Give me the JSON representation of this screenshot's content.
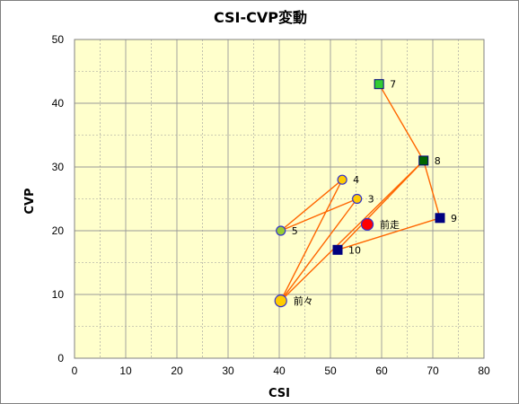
{
  "chart_data": {
    "type": "scatter",
    "title": "CSI-CVP変動",
    "xlabel": "CSI",
    "ylabel": "CVP",
    "xlim": [
      0,
      80
    ],
    "ylim": [
      0,
      50
    ],
    "xticks": [
      0,
      10,
      20,
      30,
      40,
      50,
      60,
      70,
      80
    ],
    "yticks": [
      0,
      10,
      20,
      30,
      40,
      50
    ],
    "grid": true,
    "colors": {
      "plot_bg": "#ffffcc",
      "grid": "#999999",
      "line": "#ff6600",
      "circle_fill": "#ffcc00",
      "circle_edge": "#3333cc",
      "square_fill": "#000080",
      "latest_fill": "#ff0000",
      "session5_fill": "#99cc33",
      "session7_fill": "#33cc33",
      "session8_fill": "#006600"
    },
    "points": [
      {
        "label": "前々",
        "x": 40.3,
        "y": 9,
        "marker": "circle-large",
        "fill": "#ffcc00"
      },
      {
        "label": "3",
        "x": 55.2,
        "y": 25,
        "marker": "circle",
        "fill": "#ffcc00"
      },
      {
        "label": "4",
        "x": 52.3,
        "y": 28,
        "marker": "circle",
        "fill": "#ffcc00"
      },
      {
        "label": "5",
        "x": 40.3,
        "y": 20,
        "marker": "circle",
        "fill": "#99cc33"
      },
      {
        "label": "7",
        "x": 59.5,
        "y": 43,
        "marker": "square",
        "fill": "#33cc33"
      },
      {
        "label": "8",
        "x": 68.2,
        "y": 31,
        "marker": "square",
        "fill": "#006600"
      },
      {
        "label": "9",
        "x": 71.4,
        "y": 22,
        "marker": "square",
        "fill": "#000080"
      },
      {
        "label": "10",
        "x": 51.4,
        "y": 17,
        "marker": "square",
        "fill": "#000080"
      },
      {
        "label": "前走",
        "x": 57.2,
        "y": 21,
        "marker": "circle-large",
        "fill": "#ff0000"
      }
    ],
    "connections": [
      [
        "前々",
        "3"
      ],
      [
        "3",
        "5"
      ],
      [
        "5",
        "4"
      ],
      [
        "4",
        "前々"
      ],
      [
        "前々",
        "8"
      ],
      [
        "7",
        "8"
      ],
      [
        "8",
        "9"
      ],
      [
        "9",
        "10"
      ],
      [
        "10",
        "8"
      ]
    ]
  }
}
